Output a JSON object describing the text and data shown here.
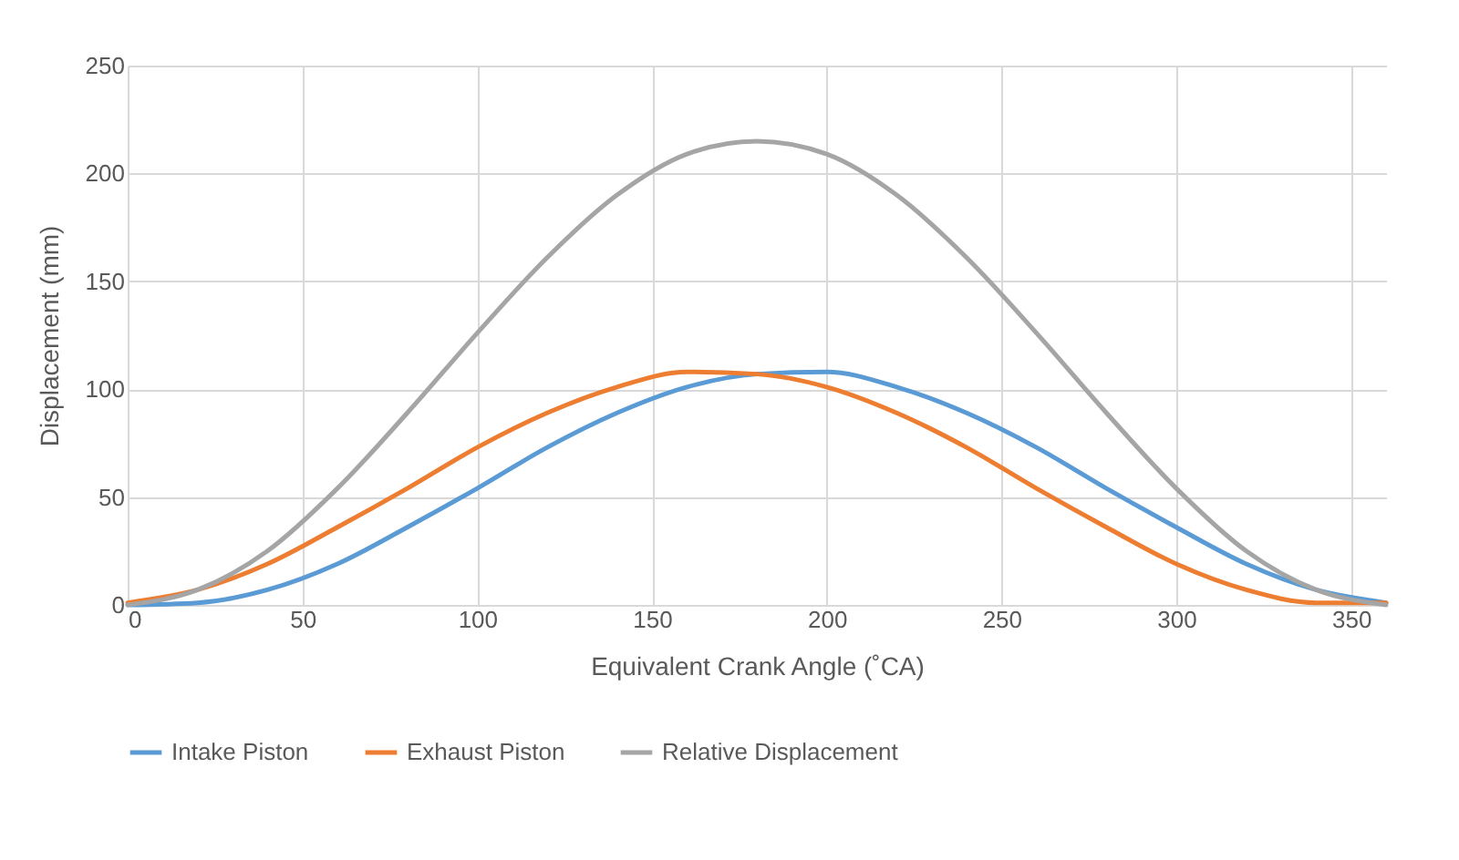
{
  "chart_data": {
    "type": "line",
    "xlabel": "Equivalent Crank Angle (˚CA)",
    "ylabel": "Displacement (mm)",
    "x": [
      0,
      20,
      40,
      60,
      80,
      100,
      120,
      140,
      160,
      180,
      200,
      220,
      240,
      260,
      280,
      300,
      320,
      340,
      360
    ],
    "series": [
      {
        "name": "Intake Piston",
        "color": "#5b9bd5",
        "values": [
          0,
          1,
          7,
          19,
          36,
          54,
          73,
          89,
          101,
          107,
          108,
          101,
          89,
          73,
          54,
          36,
          19,
          7,
          1
        ]
      },
      {
        "name": "Exhaust Piston",
        "color": "#ed7d31",
        "values": [
          1,
          7,
          19,
          36,
          54,
          73,
          89,
          101,
          108,
          107,
          101,
          89,
          73,
          54,
          36,
          19,
          7,
          1,
          1
        ]
      },
      {
        "name": "Relative Displacement",
        "color": "#a5a5a5",
        "values": [
          0,
          7,
          25,
          54,
          89,
          126,
          161,
          190,
          209,
          215,
          209,
          190,
          161,
          126,
          89,
          54,
          25,
          7,
          0
        ]
      }
    ],
    "xlim": [
      0,
      360
    ],
    "xticks": [
      0,
      50,
      100,
      150,
      200,
      250,
      300,
      350
    ],
    "ylim": [
      0,
      250
    ],
    "yticks": [
      0,
      50,
      100,
      150,
      200,
      250
    ],
    "grid": true,
    "legend": "bottom",
    "marker": "none",
    "line_style": "solid"
  }
}
